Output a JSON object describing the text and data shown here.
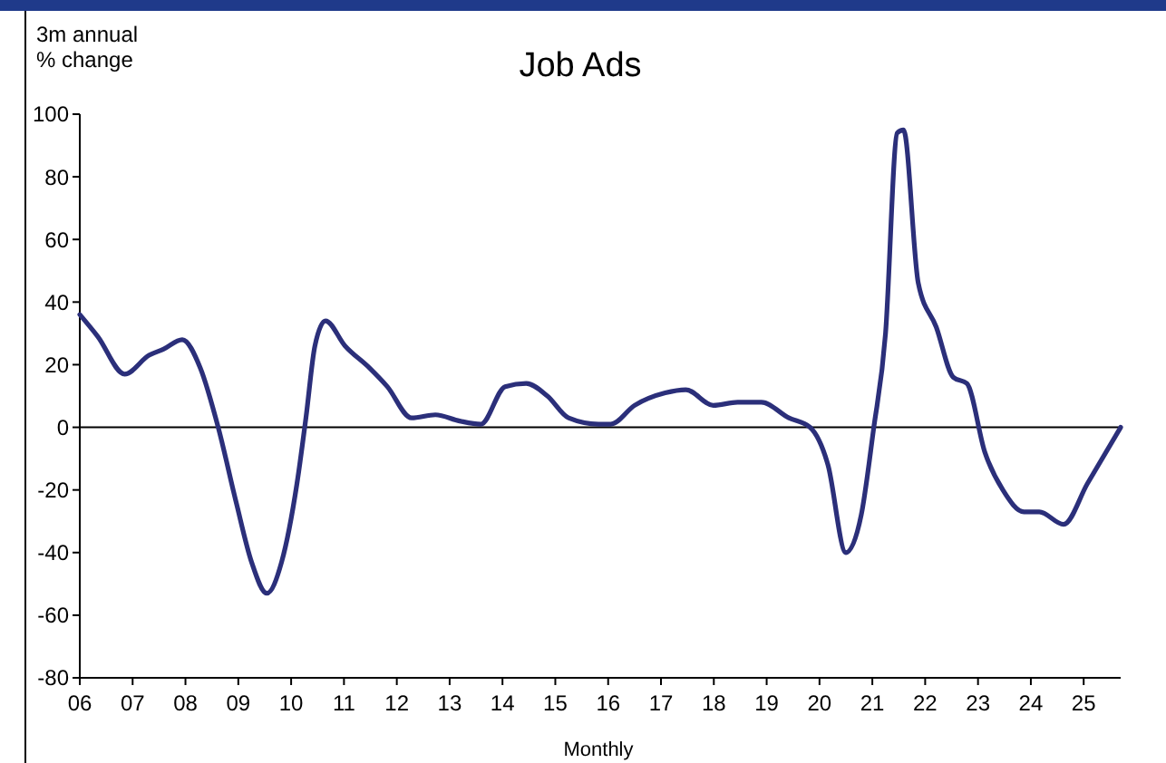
{
  "chart_data": {
    "type": "line",
    "title": "Job Ads",
    "ylabel": "3m annual\n% change",
    "xlabel": "Monthly",
    "xlim": [
      2006,
      2025.7
    ],
    "xticks": [
      {
        "value": 2006,
        "label": "06"
      },
      {
        "value": 2007,
        "label": "07"
      },
      {
        "value": 2008,
        "label": "08"
      },
      {
        "value": 2009,
        "label": "09"
      },
      {
        "value": 2010,
        "label": "10"
      },
      {
        "value": 2011,
        "label": "11"
      },
      {
        "value": 2012,
        "label": "12"
      },
      {
        "value": 2013,
        "label": "13"
      },
      {
        "value": 2014,
        "label": "14"
      },
      {
        "value": 2015,
        "label": "15"
      },
      {
        "value": 2016,
        "label": "16"
      },
      {
        "value": 2017,
        "label": "17"
      },
      {
        "value": 2018,
        "label": "18"
      },
      {
        "value": 2019,
        "label": "19"
      },
      {
        "value": 2020,
        "label": "20"
      },
      {
        "value": 2021,
        "label": "21"
      },
      {
        "value": 2022,
        "label": "22"
      },
      {
        "value": 2023,
        "label": "23"
      },
      {
        "value": 2024,
        "label": "24"
      },
      {
        "value": 2025,
        "label": "25"
      }
    ],
    "ylim": [
      -80,
      100
    ],
    "yticks": [
      -80,
      -60,
      -40,
      -20,
      0,
      20,
      40,
      60,
      80,
      100
    ],
    "ref_lines": [
      {
        "axis": "y",
        "value": 0,
        "color": "#000000"
      }
    ],
    "grid": false,
    "marker": "none",
    "line_style": "solid",
    "series": [
      {
        "color": "#2b2f7a",
        "x": [
          2006.0,
          2006.34,
          2006.85,
          2007.31,
          2007.59,
          2007.94,
          2008.28,
          2008.62,
          2008.96,
          2009.25,
          2009.54,
          2009.82,
          2010.11,
          2010.28,
          2010.45,
          2010.65,
          2011.02,
          2011.48,
          2011.82,
          2012.28,
          2012.73,
          2013.19,
          2013.59,
          2014.05,
          2014.45,
          2014.85,
          2015.25,
          2015.82,
          2016.05,
          2016.5,
          2017.08,
          2017.47,
          2017.99,
          2018.45,
          2018.9,
          2019.42,
          2019.82,
          2020.16,
          2020.5,
          2020.79,
          2021.02,
          2021.25,
          2021.47,
          2021.59,
          2021.87,
          2022.21,
          2022.53,
          2022.79,
          2023.13,
          2023.47,
          2023.87,
          2024.16,
          2024.62,
          2025.07,
          2025.7
        ],
        "values": [
          36,
          29,
          17,
          23,
          25,
          28,
          19,
          0,
          -24,
          -43,
          -53,
          -43,
          -18,
          3,
          26,
          34,
          26,
          19,
          13,
          3,
          4,
          2,
          1,
          13,
          14,
          10,
          3,
          1,
          1,
          7,
          11,
          12,
          7,
          8,
          8,
          3,
          0,
          -12,
          -40,
          -28,
          -1,
          30,
          94,
          95,
          46,
          32,
          16,
          14,
          -8,
          -20,
          -27,
          -27,
          -31,
          -18,
          0
        ]
      }
    ]
  }
}
